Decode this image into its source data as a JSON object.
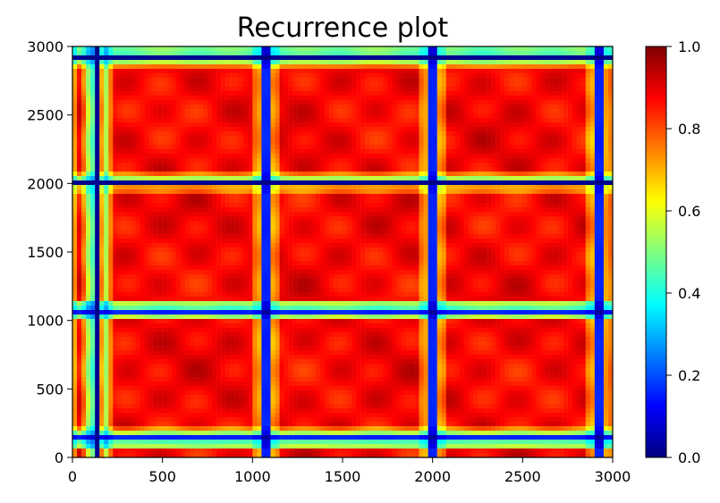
{
  "chart_data": {
    "type": "heatmap",
    "title": "Recurrence plot",
    "xlabel": "",
    "ylabel": "",
    "xlim": [
      0,
      3000
    ],
    "ylim": [
      0,
      3000
    ],
    "xticks": [
      0,
      500,
      1000,
      1500,
      2000,
      2500,
      3000
    ],
    "yticks": [
      0,
      500,
      1000,
      1500,
      2000,
      2500,
      3000
    ],
    "x_tick_labels": [
      "0",
      "500",
      "1000",
      "1500",
      "2000",
      "2500",
      "3000"
    ],
    "y_tick_labels": [
      "0",
      "500",
      "1000",
      "1500",
      "2000",
      "2500",
      "3000"
    ],
    "colorbar": {
      "min": 0.0,
      "max": 1.0,
      "colormap": "jet",
      "ticks": [
        0.0,
        0.2,
        0.4,
        0.6,
        0.8,
        1.0
      ],
      "tick_labels": [
        "0.0",
        "0.2",
        "0.4",
        "0.6",
        "0.8",
        "1.0"
      ]
    },
    "low_value_band_centers": [
      135,
      1075,
      2000,
      2925
    ],
    "band_spacing": 930,
    "typical_background_value": 0.88,
    "grid": false,
    "legend": "none"
  }
}
